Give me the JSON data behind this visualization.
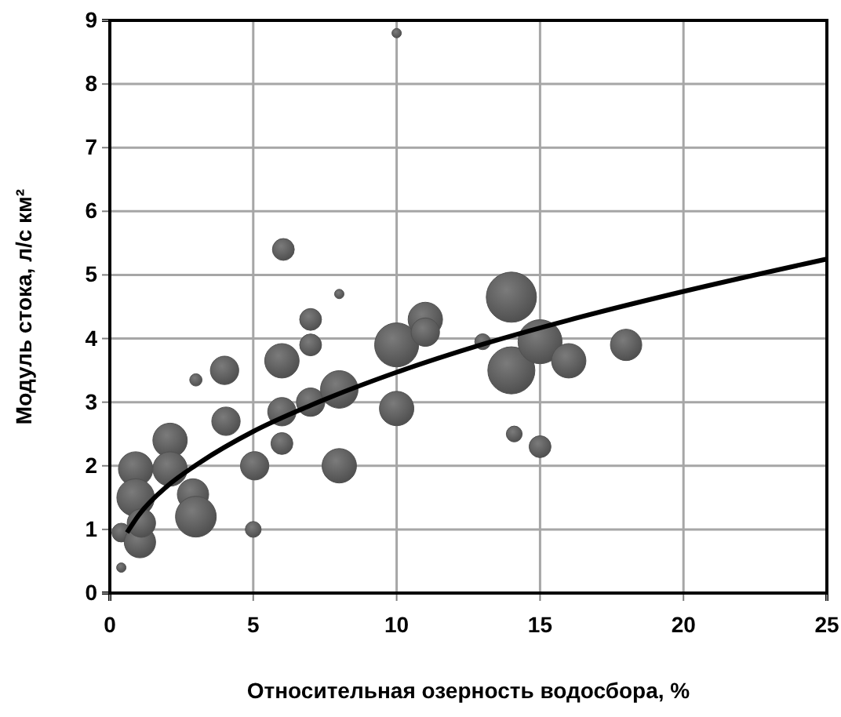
{
  "chart_data": {
    "type": "bubble",
    "xlabel": "Относительная озерность водосбора, %",
    "ylabel": "Модуль стока, л/с км²",
    "xlim": [
      0,
      25
    ],
    "xticks": [
      0,
      5,
      10,
      15,
      20,
      25
    ],
    "ylim": [
      0,
      9
    ],
    "yticks": [
      0,
      1,
      2,
      3,
      4,
      5,
      6,
      7,
      8,
      9
    ],
    "grid": true,
    "series": [
      {
        "color": "#505050",
        "x": [
          0.4,
          0.4,
          0.9,
          0.9,
          1.05,
          1.1,
          2.1,
          2.1,
          2.9,
          3,
          3,
          4,
          4.05,
          5.05,
          5,
          6.05,
          6,
          6,
          6,
          7,
          7,
          7,
          8,
          8,
          8,
          10,
          10,
          10,
          11,
          11,
          13,
          14,
          14,
          14.1,
          15,
          15,
          16,
          18
        ],
        "values": [
          0.95,
          0.4,
          1.95,
          1.5,
          0.8,
          1.1,
          2.4,
          1.95,
          1.55,
          1.2,
          3.35,
          3.5,
          2.7,
          2.0,
          1.0,
          5.4,
          3.65,
          2.85,
          2.35,
          4.3,
          3.9,
          3.0,
          3.2,
          2.0,
          4.7,
          3.9,
          2.9,
          8.8,
          4.3,
          4.1,
          3.95,
          4.65,
          3.5,
          2.5,
          3.95,
          2.3,
          3.65,
          3.9
        ],
        "sizes": [
          0.14,
          0.035,
          0.47,
          0.56,
          0.39,
          0.32,
          0.47,
          0.47,
          0.39,
          0.66,
          0.06,
          0.32,
          0.32,
          0.32,
          0.1,
          0.19,
          0.47,
          0.32,
          0.19,
          0.19,
          0.19,
          0.32,
          0.56,
          0.47,
          0.035,
          0.77,
          0.47,
          0.035,
          0.47,
          0.32,
          0.1,
          1,
          0.88,
          0.1,
          0.77,
          0.19,
          0.47,
          0.39
        ]
      },
      {
        "type": "line",
        "color": "#000000",
        "x": [
          0.6,
          1,
          2,
          3,
          5,
          7,
          10,
          13,
          16,
          20,
          25
        ],
        "values": [
          0.95,
          1.22,
          1.68,
          2.01,
          2.54,
          2.95,
          3.47,
          3.91,
          4.29,
          4.74,
          5.25
        ]
      }
    ]
  }
}
